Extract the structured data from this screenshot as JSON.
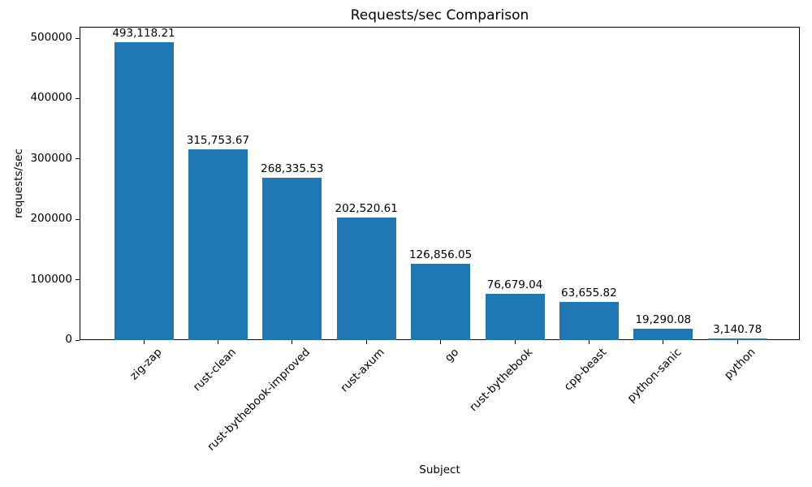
{
  "chart_data": {
    "type": "bar",
    "title": "Requests/sec Comparison",
    "xlabel": "Subject",
    "ylabel": "requests/sec",
    "categories": [
      "zig-zap",
      "rust-clean",
      "rust-bythebook-improved",
      "rust-axum",
      "go",
      "rust-bythebook",
      "cpp-beast",
      "python-sanic",
      "python"
    ],
    "values": [
      493118.21,
      315753.67,
      268335.53,
      202520.61,
      126856.05,
      76679.04,
      63655.82,
      19290.08,
      3140.78
    ],
    "bar_labels": [
      "493,118.21",
      "315,753.67",
      "268,335.53",
      "202,520.61",
      "126,856.05",
      "76,679.04",
      "63,655.82",
      "19,290.08",
      "3,140.78"
    ],
    "y_ticks": [
      0,
      100000,
      200000,
      300000,
      400000,
      500000
    ],
    "y_tick_labels": [
      "0",
      "100000",
      "200000",
      "300000",
      "400000",
      "500000"
    ],
    "ylim": [
      0,
      518800
    ],
    "bar_color": "#1f77b4",
    "grid": false,
    "legend": "none"
  }
}
